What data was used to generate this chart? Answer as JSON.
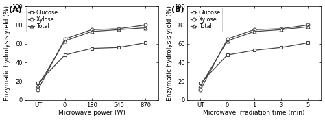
{
  "panel_A": {
    "title": "(A)",
    "xlabel": "Microwave power (W)",
    "ylabel": "Enzymatic hydrolysis yield (%)",
    "x_labels": [
      "UT",
      "0",
      "180",
      "540",
      "870"
    ],
    "x_positions": [
      0,
      1,
      2,
      3,
      4
    ],
    "glucose": [
      18,
      48,
      55,
      56,
      61
    ],
    "xylose": [
      11,
      65,
      75,
      76,
      80
    ],
    "total": [
      15,
      63,
      73,
      75,
      77
    ],
    "ylim": [
      0,
      100
    ],
    "yticks": [
      0,
      20,
      40,
      60,
      80,
      100
    ]
  },
  "panel_B": {
    "title": "(B)",
    "xlabel": "Microwave irradiation time (min)",
    "ylabel": "Enzymatic hydrolysis yield (%)",
    "x_labels": [
      "UT",
      "0",
      "1",
      "3",
      "5"
    ],
    "x_positions": [
      0,
      1,
      2,
      3,
      4
    ],
    "glucose": [
      18,
      48,
      53,
      56,
      61
    ],
    "xylose": [
      11,
      65,
      75,
      76,
      80
    ],
    "total": [
      15,
      63,
      73,
      75,
      78
    ],
    "ylim": [
      0,
      100
    ],
    "yticks": [
      0,
      20,
      40,
      60,
      80,
      100
    ]
  },
  "legend_labels": [
    "Glucose",
    "Xylose",
    "Total"
  ],
  "line_color": "#444444",
  "marker_glucose": "s",
  "marker_xylose": "o",
  "marker_total": "^",
  "markersize": 3.5,
  "linewidth": 0.9,
  "fontsize_axis_label": 6.5,
  "fontsize_tick": 6,
  "fontsize_legend": 5.8,
  "fontsize_panel_label": 8
}
